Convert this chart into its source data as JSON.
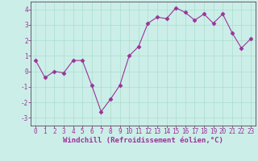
{
  "x": [
    0,
    1,
    2,
    3,
    4,
    5,
    6,
    7,
    8,
    9,
    10,
    11,
    12,
    13,
    14,
    15,
    16,
    17,
    18,
    19,
    20,
    21,
    22,
    23
  ],
  "y": [
    0.7,
    -0.4,
    0.0,
    -0.1,
    0.7,
    0.7,
    -0.9,
    -2.6,
    -1.8,
    -0.9,
    1.0,
    1.6,
    3.1,
    3.5,
    3.4,
    4.1,
    3.8,
    3.3,
    3.7,
    3.1,
    3.7,
    2.5,
    1.5,
    2.1
  ],
  "line_color": "#993399",
  "marker": "D",
  "marker_size": 2.5,
  "linewidth": 0.8,
  "xlabel": "Windchill (Refroidissement éolien,°C)",
  "xlabel_fontsize": 6.5,
  "ylabel": "",
  "title": "",
  "xlim": [
    -0.5,
    23.5
  ],
  "ylim": [
    -3.5,
    4.5
  ],
  "yticks": [
    -3,
    -2,
    -1,
    0,
    1,
    2,
    3,
    4
  ],
  "xticks": [
    0,
    1,
    2,
    3,
    4,
    5,
    6,
    7,
    8,
    9,
    10,
    11,
    12,
    13,
    14,
    15,
    16,
    17,
    18,
    19,
    20,
    21,
    22,
    23
  ],
  "bg_color": "#cceee8",
  "grid_color": "#aaddcc",
  "tick_fontsize": 5.5,
  "spine_color": "#663366",
  "axes_color": "#554455"
}
